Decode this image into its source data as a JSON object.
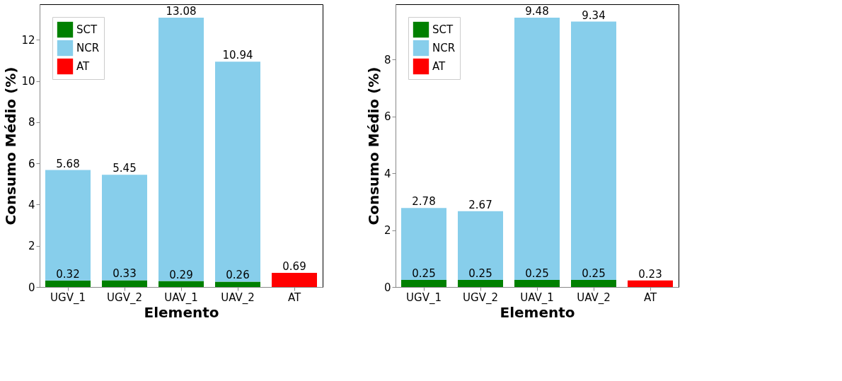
{
  "chart_data": [
    {
      "type": "bar",
      "stacked": true,
      "xlabel": "Elemento",
      "ylabel": "Consumo Médio (%)",
      "categories": [
        "UGV_1",
        "UGV_2",
        "UAV_1",
        "UAV_2",
        "AT"
      ],
      "series": [
        {
          "name": "SCT",
          "color": "#008000",
          "values": [
            0.32,
            0.33,
            0.29,
            0.26,
            null
          ],
          "value_labels": [
            "0.32",
            "0.33",
            "0.29",
            "0.26",
            null
          ]
        },
        {
          "name": "NCR",
          "color": "#87ceeb",
          "values": [
            5.36,
            5.12,
            12.79,
            10.68,
            null
          ],
          "value_labels": [
            null,
            null,
            null,
            null,
            null
          ]
        },
        {
          "name": "AT",
          "color": "#ff0000",
          "values": [
            null,
            null,
            null,
            null,
            0.69
          ],
          "value_labels": [
            null,
            null,
            null,
            null,
            "0.69"
          ]
        }
      ],
      "totals": [
        "5.68",
        "5.45",
        "13.08",
        "10.94",
        null
      ],
      "ylim": [
        0,
        13.73
      ],
      "yticks": [
        0,
        2,
        4,
        6,
        8,
        10,
        12
      ],
      "legend": "top left",
      "grid": false
    },
    {
      "type": "bar",
      "stacked": true,
      "xlabel": "Elemento",
      "ylabel": "Consumo Médio (%)",
      "categories": [
        "UGV_1",
        "UGV_2",
        "UAV_1",
        "UAV_2",
        "AT"
      ],
      "series": [
        {
          "name": "SCT",
          "color": "#008000",
          "values": [
            0.25,
            0.25,
            0.25,
            0.25,
            null
          ],
          "value_labels": [
            "0.25",
            "0.25",
            "0.25",
            "0.25",
            null
          ]
        },
        {
          "name": "NCR",
          "color": "#87ceeb",
          "values": [
            2.53,
            2.42,
            9.23,
            9.09,
            null
          ],
          "value_labels": [
            null,
            null,
            null,
            null,
            null
          ]
        },
        {
          "name": "AT",
          "color": "#ff0000",
          "values": [
            null,
            null,
            null,
            null,
            0.23
          ],
          "value_labels": [
            null,
            null,
            null,
            null,
            "0.23"
          ]
        }
      ],
      "totals": [
        "2.78",
        "2.67",
        "9.48",
        "9.34",
        null
      ],
      "ylim": [
        0,
        9.95
      ],
      "yticks": [
        0,
        2,
        4,
        6,
        8
      ],
      "legend": "top left",
      "grid": false
    }
  ]
}
